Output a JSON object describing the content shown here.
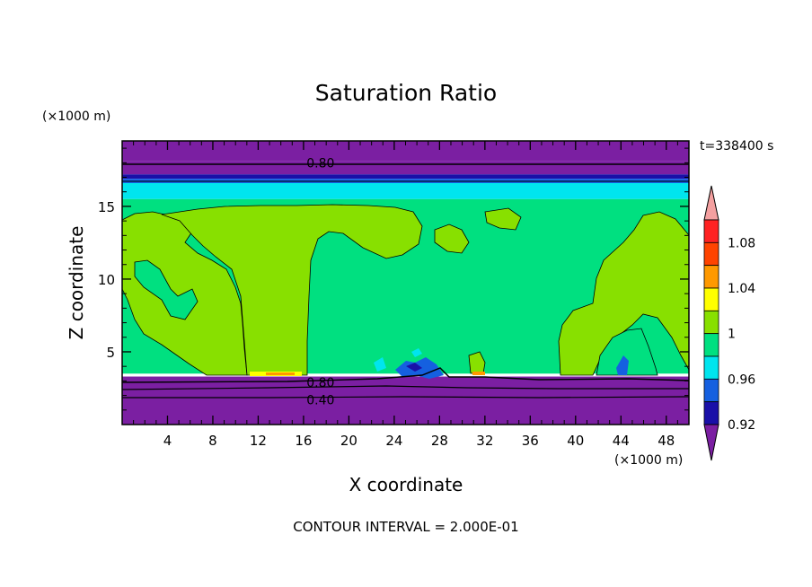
{
  "chart_data": {
    "type": "heatmap",
    "title": "Saturation Ratio",
    "xlabel": "X coordinate",
    "ylabel": "Z coordinate",
    "x_unit": "(×1000 m)",
    "y_unit": "(×1000 m)",
    "time_label": "t=338400 s",
    "footer": "CONTOUR INTERVAL = 2.000E-01",
    "xlim": [
      0,
      50
    ],
    "ylim": [
      0,
      19.5
    ],
    "x_ticks": [
      4,
      8,
      12,
      16,
      20,
      24,
      28,
      32,
      36,
      40,
      44,
      48
    ],
    "y_ticks": [
      5,
      10,
      15
    ],
    "contour_labels": [
      {
        "text": "0.80",
        "x": 17.5,
        "y": 18.0
      },
      {
        "text": "0.80",
        "x": 17.5,
        "y": 2.9
      },
      {
        "text": "0.40",
        "x": 17.5,
        "y": 1.7
      }
    ],
    "colorbar": {
      "levels": [
        0.92,
        0.96,
        1,
        1.04,
        1.08
      ],
      "tick_labels": [
        "0.92",
        "0.96",
        "1",
        "1.04",
        "1.08"
      ],
      "colors": [
        "#7b1fa2",
        "#1a10a8",
        "#1560e0",
        "#00e5ee",
        "#00e080",
        "#88e000",
        "#ffff00",
        "#ff9900",
        "#ff4400",
        "#ff2222",
        "#f4a0a0"
      ]
    },
    "bands": [
      {
        "z_from": 18.1,
        "z_to": 19.5,
        "value": "<0.92",
        "color": "#7b1fa2"
      },
      {
        "z_from": 17.2,
        "z_to": 18.1,
        "value": "<0.92",
        "color": "#7b1fa2"
      },
      {
        "z_from": 16.9,
        "z_to": 17.2,
        "value": "0.92-0.94",
        "color": "#1a10a8"
      },
      {
        "z_from": 16.6,
        "z_to": 16.9,
        "value": "0.94-0.96",
        "color": "#1560e0"
      },
      {
        "z_from": 15.5,
        "z_to": 16.6,
        "value": "0.96-0.98",
        "color": "#00e5ee"
      },
      {
        "z_from": 3.5,
        "z_to": 15.5,
        "value": "0.98-1",
        "color": "#00e080"
      },
      {
        "z_from": 0,
        "z_to": 3.3,
        "value": "<0.92",
        "color": "#7b1fa2"
      }
    ]
  }
}
